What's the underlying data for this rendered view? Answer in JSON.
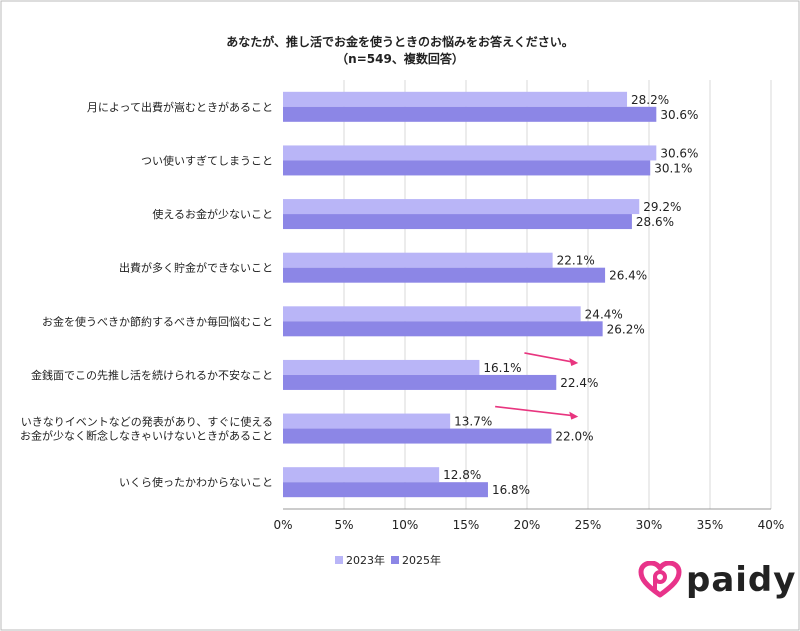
{
  "title_line1": "あなたが、推し活でお金を使うときのお悩みをお答えください。",
  "title_line2": "（n=549、複数回答）",
  "legend": {
    "series1": "2023年",
    "series2": "2025年"
  },
  "logo": {
    "text": "paidy",
    "icon": "paidy-logo-icon"
  },
  "colors": {
    "series1": "#b9b5f7",
    "series2": "#8c86e6",
    "arrow": "#e8357f",
    "logo": "#e8338a"
  },
  "chart_data": {
    "type": "bar",
    "orientation": "horizontal",
    "categories": [
      [
        "月によって出費が嵩むときがあること"
      ],
      [
        "つい使いすぎてしまうこと"
      ],
      [
        "使えるお金が少ないこと"
      ],
      [
        "出費が多く貯金ができないこと"
      ],
      [
        "お金を使うべきか節約するべきか毎回悩むこと"
      ],
      [
        "金銭面でこの先推し活を続けられるか不安なこと"
      ],
      [
        "いきなりイベントなどの発表があり、すぐに使える",
        "お金が少なく断念しなきゃいけないときがあること"
      ],
      [
        "いくら使ったかわからないこと"
      ]
    ],
    "series": [
      {
        "name": "2023年",
        "values": [
          28.2,
          30.6,
          29.2,
          22.1,
          24.4,
          16.1,
          13.7,
          12.8
        ]
      },
      {
        "name": "2025年",
        "values": [
          30.6,
          30.1,
          28.6,
          26.4,
          26.2,
          22.4,
          22.0,
          16.8
        ]
      }
    ],
    "value_labels": [
      [
        "28.2%",
        "30.6%",
        "29.2%",
        "22.1%",
        "24.4%",
        "16.1%",
        "13.7%",
        "12.8%"
      ],
      [
        "30.6%",
        "30.1%",
        "28.6%",
        "26.4%",
        "26.2%",
        "22.4%",
        "22.0%",
        "16.8%"
      ]
    ],
    "xlim": [
      0,
      40
    ],
    "xticks": [
      0,
      5,
      10,
      15,
      20,
      25,
      30,
      35,
      40
    ],
    "xtick_labels": [
      "0%",
      "5%",
      "10%",
      "15%",
      "20%",
      "25%",
      "30%",
      "35%",
      "40%"
    ],
    "grid": true,
    "legend_position": "bottom",
    "highlight_arrows": [
      5,
      6
    ]
  }
}
